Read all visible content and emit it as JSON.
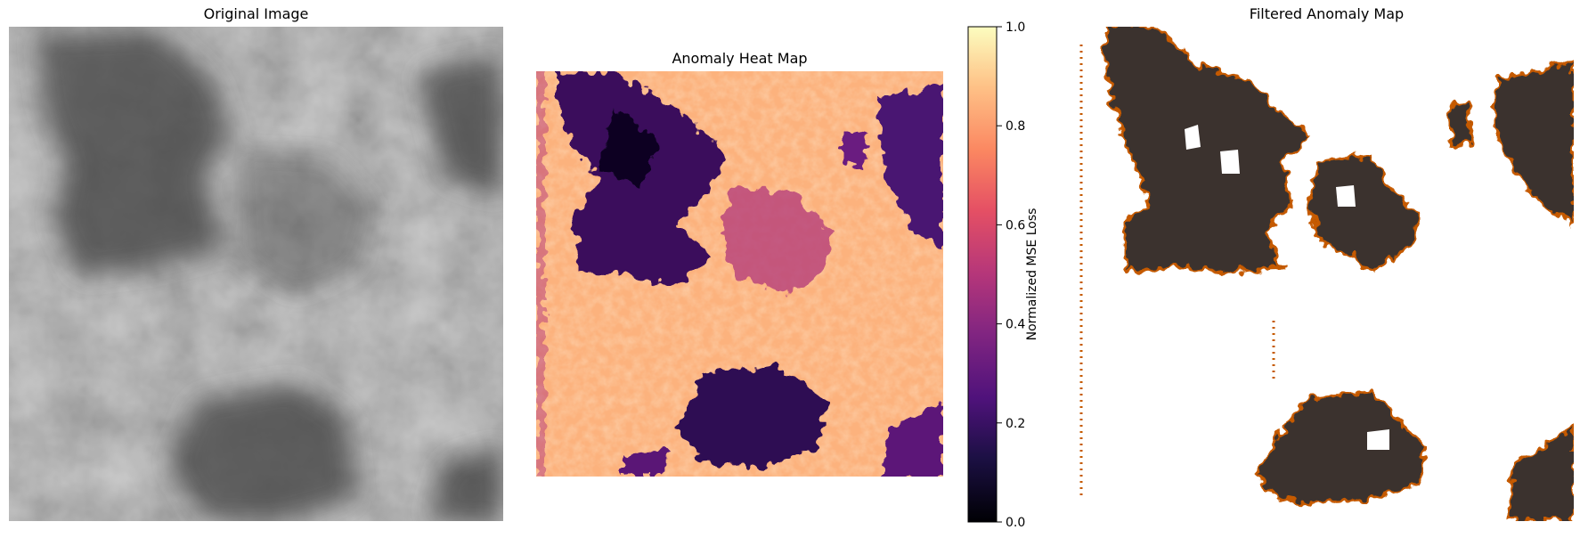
{
  "panels": [
    {
      "id": "original",
      "title": "Original Image"
    },
    {
      "id": "heatmap",
      "title": "Anomaly Heat Map"
    },
    {
      "id": "filtered",
      "title": "Filtered Anomaly Map"
    }
  ],
  "chart_data": [
    {
      "type": "heatmap",
      "title": "Original Image",
      "colormap": "gray",
      "axes_visible": false
    },
    {
      "type": "heatmap",
      "title": "Anomaly Heat Map",
      "colormap": "magma",
      "axes_visible": false,
      "colorbar": {
        "label": "Normalized MSE Loss",
        "range": [
          0.0,
          1.0
        ],
        "ticks": [
          "0.0",
          "0.2",
          "0.4",
          "0.6",
          "0.8",
          "1.0"
        ]
      }
    },
    {
      "type": "heatmap",
      "title": "Filtered Anomaly Map",
      "colors": [
        "#3b302f",
        "#ffffff",
        "#8b2a00"
      ],
      "axes_visible": false
    }
  ],
  "colors": {
    "dark_region": "#3b302f",
    "edge_orange": "#c55a00",
    "background": "#ffffff"
  }
}
